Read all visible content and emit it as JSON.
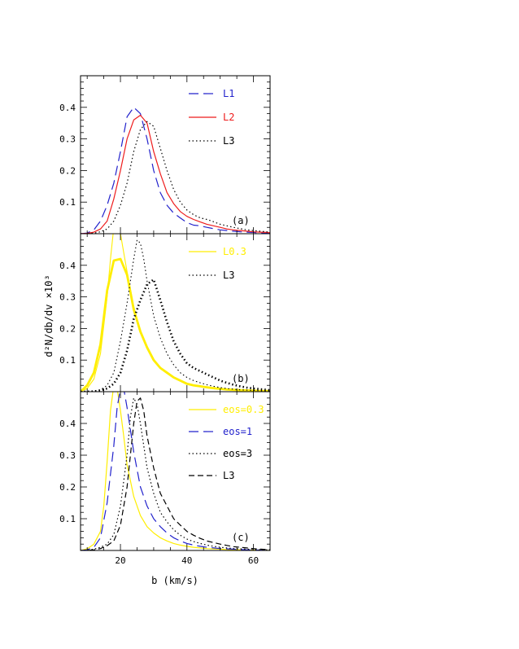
{
  "chart_data": {
    "type": "line",
    "xlabel": "b (km/s)",
    "ylabel": "d²N/db/dv ×10³",
    "xlim": [
      8,
      65
    ],
    "x_ticks": [
      20,
      40,
      60
    ],
    "grid": false,
    "legend_placement": "top-right",
    "panels": [
      {
        "tag": "(a)",
        "ylim": [
          0,
          0.5
        ],
        "y_ticks": [
          0.1,
          0.2,
          0.3,
          0.4
        ],
        "series": [
          {
            "name": "L1",
            "color": "#2222cc",
            "dash": "longdash",
            "width": 1.2,
            "x": [
              8,
              10,
              12,
              14,
              16,
              18,
              20,
              22,
              24,
              26,
              28,
              30,
              32,
              34,
              36,
              38,
              40,
              42,
              44,
              46,
              48,
              50,
              52,
              54,
              56,
              58,
              60,
              62,
              64,
              65
            ],
            "y": [
              0,
              0.002,
              0.012,
              0.04,
              0.09,
              0.16,
              0.26,
              0.37,
              0.4,
              0.38,
              0.3,
              0.2,
              0.13,
              0.09,
              0.065,
              0.05,
              0.035,
              0.027,
              0.025,
              0.02,
              0.016,
              0.012,
              0.01,
              0.008,
              0.006,
              0.005,
              0.004,
              0.002,
              0.001,
              0.001
            ]
          },
          {
            "name": "L2",
            "color": "#ee1c1c",
            "dash": "solid",
            "width": 1.2,
            "x": [
              8,
              10,
              12,
              14,
              16,
              18,
              20,
              22,
              24,
              26,
              28,
              30,
              32,
              34,
              36,
              38,
              40,
              42,
              44,
              46,
              48,
              50,
              52,
              54,
              56,
              58,
              60,
              62,
              64,
              65
            ],
            "y": [
              0,
              0.001,
              0.005,
              0.015,
              0.04,
              0.11,
              0.2,
              0.3,
              0.36,
              0.375,
              0.35,
              0.26,
              0.19,
              0.13,
              0.095,
              0.07,
              0.055,
              0.045,
              0.037,
              0.03,
              0.025,
              0.02,
              0.015,
              0.012,
              0.01,
              0.008,
              0.006,
              0.005,
              0.004,
              0.003
            ]
          },
          {
            "name": "L3",
            "color": "#000000",
            "dash": "dotted",
            "width": 1.2,
            "x": [
              8,
              10,
              12,
              14,
              16,
              18,
              20,
              22,
              24,
              26,
              28,
              30,
              32,
              34,
              36,
              38,
              40,
              42,
              44,
              46,
              48,
              50,
              52,
              54,
              56,
              58,
              60,
              62,
              64,
              65
            ],
            "y": [
              0,
              0,
              0.002,
              0.006,
              0.015,
              0.04,
              0.09,
              0.16,
              0.26,
              0.33,
              0.355,
              0.34,
              0.27,
              0.2,
              0.14,
              0.1,
              0.075,
              0.06,
              0.05,
              0.045,
              0.038,
              0.03,
              0.025,
              0.02,
              0.016,
              0.012,
              0.01,
              0.008,
              0.006,
              0.005
            ]
          }
        ]
      },
      {
        "tag": "(b)",
        "ylim": [
          0,
          0.5
        ],
        "y_ticks": [
          0.1,
          0.2,
          0.3,
          0.4
        ],
        "series": [
          {
            "name": "L0.3",
            "color": "#ffee00",
            "dash": "solid",
            "width": 1.1,
            "x": [
              8,
              10,
              12,
              14,
              16,
              17,
              18,
              19,
              20,
              21,
              22,
              24,
              26,
              28,
              30,
              32,
              34,
              36,
              38,
              40,
              42,
              44,
              46,
              48,
              50,
              52,
              54,
              56,
              58,
              60,
              62,
              64,
              65
            ],
            "y": [
              0,
              0.01,
              0.04,
              0.12,
              0.3,
              0.42,
              0.52,
              0.52,
              0.5,
              0.44,
              0.38,
              0.27,
              0.19,
              0.14,
              0.1,
              0.075,
              0.06,
              0.045,
              0.035,
              0.025,
              0.02,
              0.016,
              0.013,
              0.01,
              0.008,
              0.006,
              0.005,
              0.004,
              0.003,
              0.002,
              0.002,
              0.001,
              0.001
            ]
          },
          {
            "name": "",
            "color": "#ffee00",
            "dash": "solid",
            "width": 2.8,
            "x": [
              8,
              10,
              12,
              14,
              16,
              18,
              20,
              22,
              24,
              26,
              28,
              30,
              32,
              34,
              36,
              38,
              40,
              42,
              44,
              46,
              48,
              50,
              52,
              54,
              56,
              58,
              60,
              62,
              64,
              65
            ],
            "y": [
              0,
              0.02,
              0.06,
              0.15,
              0.32,
              0.415,
              0.42,
              0.37,
              0.26,
              0.19,
              0.14,
              0.1,
              0.075,
              0.06,
              0.045,
              0.035,
              0.025,
              0.02,
              0.017,
              0.014,
              0.011,
              0.009,
              0.007,
              0.006,
              0.005,
              0.004,
              0.003,
              0.002,
              0.002,
              0.001
            ]
          },
          {
            "name": "L3",
            "color": "#000000",
            "dash": "dotted",
            "width": 1.1,
            "x": [
              8,
              10,
              12,
              14,
              16,
              18,
              20,
              22,
              24,
              25,
              26,
              27,
              28,
              30,
              32,
              34,
              36,
              38,
              40,
              42,
              44,
              46,
              48,
              50,
              52,
              54,
              56,
              58,
              60,
              62,
              64,
              65
            ],
            "y": [
              0,
              0,
              0.002,
              0.006,
              0.02,
              0.06,
              0.16,
              0.28,
              0.42,
              0.48,
              0.47,
              0.42,
              0.35,
              0.24,
              0.17,
              0.12,
              0.085,
              0.06,
              0.045,
              0.035,
              0.028,
              0.022,
              0.017,
              0.013,
              0.01,
              0.008,
              0.006,
              0.005,
              0.004,
              0.003,
              0.002,
              0.002
            ]
          },
          {
            "name": "",
            "color": "#000000",
            "dash": "dotted",
            "width": 2.6,
            "x": [
              8,
              10,
              12,
              14,
              16,
              18,
              20,
              22,
              24,
              26,
              28,
              30,
              32,
              34,
              36,
              38,
              40,
              42,
              44,
              46,
              48,
              50,
              52,
              54,
              56,
              58,
              60,
              62,
              64,
              65
            ],
            "y": [
              0,
              0,
              0.001,
              0.004,
              0.01,
              0.025,
              0.06,
              0.13,
              0.23,
              0.29,
              0.34,
              0.355,
              0.29,
              0.22,
              0.16,
              0.12,
              0.09,
              0.075,
              0.065,
              0.055,
              0.045,
              0.035,
              0.028,
              0.022,
              0.017,
              0.013,
              0.01,
              0.008,
              0.006,
              0.005
            ]
          }
        ]
      },
      {
        "tag": "(c)",
        "ylim": [
          0,
          0.5
        ],
        "y_ticks": [
          0.1,
          0.2,
          0.3,
          0.4
        ],
        "series": [
          {
            "name": "eos=0.3",
            "color": "#ffee00",
            "dash": "solid",
            "width": 1.2,
            "x": [
              8,
              10,
              12,
              14,
              15,
              16,
              17,
              18,
              19,
              20,
              21,
              22,
              24,
              26,
              28,
              30,
              32,
              34,
              36,
              38,
              40,
              42,
              44,
              46,
              48,
              50,
              52,
              54,
              56,
              58,
              60,
              62,
              64,
              65
            ],
            "y": [
              0,
              0.005,
              0.02,
              0.06,
              0.14,
              0.28,
              0.44,
              0.52,
              0.51,
              0.44,
              0.36,
              0.27,
              0.17,
              0.11,
              0.075,
              0.055,
              0.04,
              0.03,
              0.022,
              0.017,
              0.013,
              0.01,
              0.008,
              0.006,
              0.005,
              0.004,
              0.003,
              0.002,
              0.002,
              0.001,
              0.001,
              0.001,
              0,
              0
            ]
          },
          {
            "name": "eos=1",
            "color": "#2222cc",
            "dash": "longdash",
            "width": 1.2,
            "x": [
              8,
              10,
              12,
              14,
              16,
              18,
              19,
              20,
              21,
              22,
              23,
              24,
              26,
              28,
              30,
              32,
              34,
              36,
              38,
              40,
              42,
              44,
              46,
              48,
              50,
              52,
              54,
              56,
              58,
              60,
              62,
              64,
              65
            ],
            "y": [
              0,
              0.002,
              0.01,
              0.04,
              0.15,
              0.33,
              0.45,
              0.51,
              0.51,
              0.45,
              0.38,
              0.31,
              0.2,
              0.14,
              0.1,
              0.075,
              0.055,
              0.04,
              0.03,
              0.022,
              0.017,
              0.013,
              0.01,
              0.008,
              0.006,
              0.005,
              0.004,
              0.003,
              0.002,
              0.002,
              0.001,
              0.001,
              0.001
            ]
          },
          {
            "name": "eos=3",
            "color": "#000000",
            "dash": "dotted",
            "width": 1.2,
            "x": [
              8,
              10,
              12,
              14,
              16,
              18,
              20,
              22,
              23,
              24,
              25,
              26,
              28,
              30,
              32,
              34,
              36,
              38,
              40,
              42,
              44,
              46,
              48,
              50,
              52,
              54,
              56,
              58,
              60,
              62,
              64,
              65
            ],
            "y": [
              0,
              0.001,
              0.004,
              0.01,
              0.02,
              0.05,
              0.14,
              0.3,
              0.42,
              0.48,
              0.46,
              0.4,
              0.26,
              0.18,
              0.12,
              0.09,
              0.065,
              0.048,
              0.036,
              0.028,
              0.022,
              0.017,
              0.013,
              0.01,
              0.008,
              0.006,
              0.005,
              0.004,
              0.003,
              0.002,
              0.002,
              0.001
            ]
          },
          {
            "name": "L3",
            "color": "#000000",
            "dash": "dashed",
            "width": 1.2,
            "x": [
              8,
              10,
              12,
              14,
              16,
              18,
              20,
              22,
              24,
              25,
              26,
              27,
              28,
              30,
              32,
              34,
              36,
              38,
              40,
              42,
              44,
              46,
              48,
              50,
              52,
              54,
              56,
              58,
              60,
              62,
              64,
              65
            ],
            "y": [
              0,
              0,
              0.002,
              0.006,
              0.015,
              0.03,
              0.08,
              0.2,
              0.4,
              0.47,
              0.48,
              0.44,
              0.36,
              0.26,
              0.18,
              0.14,
              0.1,
              0.08,
              0.06,
              0.048,
              0.038,
              0.03,
              0.025,
              0.02,
              0.016,
              0.012,
              0.01,
              0.008,
              0.006,
              0.004,
              0.003,
              0.002
            ]
          }
        ]
      }
    ]
  }
}
